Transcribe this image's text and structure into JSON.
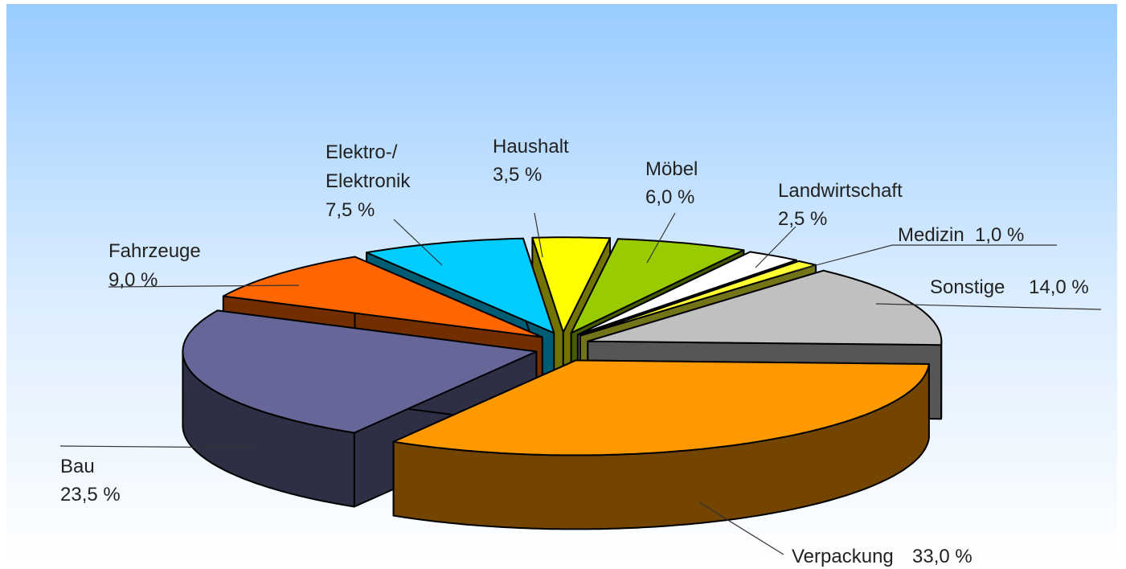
{
  "chart_data": {
    "type": "pie",
    "categories": [
      "Haushalt",
      "Möbel",
      "Landwirtschaft",
      "Medizin",
      "Sonstige",
      "Verpackung",
      "Bau",
      "Fahrzeuge",
      "Elektro-/\nElektronik"
    ],
    "values": [
      3.5,
      6.0,
      2.5,
      1.0,
      14.0,
      33.0,
      23.5,
      9.0,
      7.5
    ],
    "value_labels": [
      "3,5 %",
      "6,0 %",
      "2,5 %",
      "1,0 %",
      "14,0 %",
      "33,0 %",
      "23,5 %",
      "9,0 %",
      "7,5 %"
    ],
    "colors": [
      "#ffff00",
      "#99cc00",
      "#ffffff",
      "#ffff33",
      "#c0c0c0",
      "#ff9900",
      "#666699",
      "#ff6600",
      "#00ccff"
    ]
  }
}
